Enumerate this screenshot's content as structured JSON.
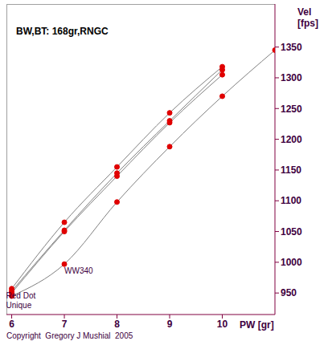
{
  "chart_data": {
    "type": "line",
    "title": "BW,BT: 168gr,RNGC",
    "x_label": "PW [gr]",
    "y_label": "Vel [fps]",
    "footnote": "Copyright  Gregory J Mushial  2005",
    "x": [
      6,
      7,
      8,
      9,
      10,
      11
    ],
    "xlim": [
      5.9,
      11
    ],
    "xticks": [
      6,
      7,
      8,
      9,
      10
    ],
    "ylim": [
      915,
      1420
    ],
    "yticks": [
      950,
      1000,
      1050,
      1100,
      1150,
      1200,
      1250,
      1300,
      1350
    ],
    "grid": false,
    "marker": "circle",
    "series": [
      {
        "color": "#e00000",
        "values": [
          957,
          1065,
          1155,
          1243,
          1318,
          null
        ]
      },
      {
        "name": "Red Dot",
        "color": "#e00000",
        "values": [
          953,
          1052,
          1145,
          1230,
          1313,
          null
        ]
      },
      {
        "name": "Unique",
        "color": "#e00000",
        "values": [
          950,
          1050,
          1140,
          1227,
          1305,
          null
        ]
      },
      {
        "name": "WW340",
        "color": "#e00000",
        "values": [
          945,
          997,
          1098,
          1188,
          1270,
          1345
        ]
      }
    ]
  }
}
